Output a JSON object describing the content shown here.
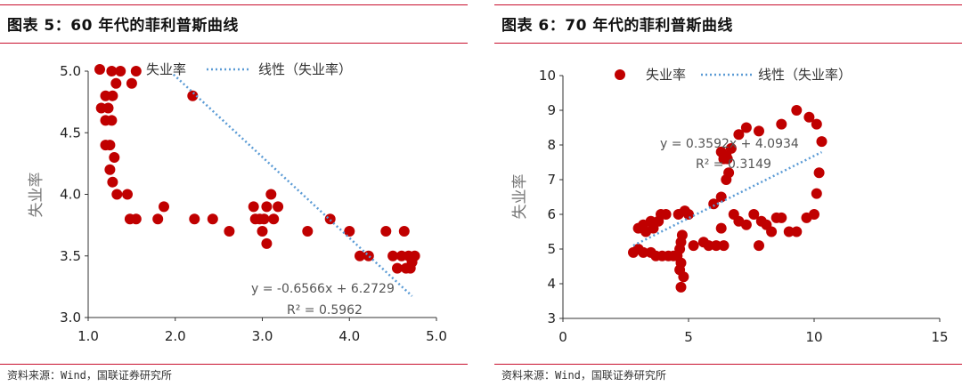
{
  "panels": [
    {
      "title": "图表 5：60 年代的菲利普斯曲线",
      "source": "资料来源：Wind，国联证券研究所"
    },
    {
      "title": "图表 6：70 年代的菲利普斯曲线",
      "source": "资料来源：Wind，国联证券研究所"
    }
  ],
  "colors": {
    "accent": "#c8102e",
    "point": "#c00000",
    "trend": "#5b9bd5"
  },
  "chart_data": [
    {
      "type": "scatter",
      "ylabel": "失业率",
      "xlim": [
        1.0,
        5.0
      ],
      "ylim": [
        3.0,
        5.0
      ],
      "xticks": [
        "1.0",
        "2.0",
        "3.0",
        "4.0",
        "5.0"
      ],
      "yticks": [
        "3.0",
        "3.5",
        "4.0",
        "4.5",
        "5.0"
      ],
      "legend": {
        "series": "失业率",
        "trend": "线性（失业率）",
        "placement": "top"
      },
      "series": [
        {
          "name": "失业率",
          "points": [
            [
              1.27,
              5.0
            ],
            [
              1.37,
              5.0
            ],
            [
              1.55,
              5.0
            ],
            [
              1.32,
              4.9
            ],
            [
              1.5,
              4.9
            ],
            [
              1.2,
              4.8
            ],
            [
              1.28,
              4.8
            ],
            [
              1.23,
              4.7
            ],
            [
              1.15,
              4.7
            ],
            [
              1.2,
              4.6
            ],
            [
              1.27,
              4.6
            ],
            [
              1.2,
              4.4
            ],
            [
              1.25,
              4.4
            ],
            [
              1.3,
              4.3
            ],
            [
              1.25,
              4.2
            ],
            [
              1.28,
              4.1
            ],
            [
              1.33,
              4.0
            ],
            [
              1.45,
              4.0
            ],
            [
              1.48,
              3.8
            ],
            [
              1.55,
              3.8
            ],
            [
              1.8,
              3.8
            ],
            [
              1.87,
              3.9
            ],
            [
              2.2,
              4.8
            ],
            [
              2.22,
              3.8
            ],
            [
              2.43,
              3.8
            ],
            [
              2.62,
              3.7
            ],
            [
              2.9,
              3.9
            ],
            [
              2.92,
              3.8
            ],
            [
              2.97,
              3.8
            ],
            [
              3.02,
              3.8
            ],
            [
              3.05,
              3.9
            ],
            [
              3.1,
              4.0
            ],
            [
              3.13,
              3.8
            ],
            [
              3.18,
              3.9
            ],
            [
              3.0,
              3.7
            ],
            [
              3.05,
              3.6
            ],
            [
              3.52,
              3.7
            ],
            [
              3.78,
              3.8
            ],
            [
              4.0,
              3.7
            ],
            [
              4.12,
              3.5
            ],
            [
              4.22,
              3.5
            ],
            [
              4.42,
              3.7
            ],
            [
              4.5,
              3.5
            ],
            [
              4.55,
              3.4
            ],
            [
              4.6,
              3.5
            ],
            [
              4.63,
              3.7
            ],
            [
              4.65,
              3.4
            ],
            [
              4.68,
              3.5
            ],
            [
              4.7,
              3.4
            ],
            [
              4.72,
              3.45
            ],
            [
              4.75,
              3.5
            ]
          ]
        }
      ],
      "trendline": {
        "slope": -0.6566,
        "intercept": 6.2729,
        "x_range": [
          1.98,
          4.72
        ],
        "equation": "y = -0.6566x + 6.2729",
        "r2": "R² = 0.5962"
      }
    },
    {
      "type": "scatter",
      "ylabel": "失业率",
      "xlim": [
        0,
        15
      ],
      "ylim": [
        3,
        10
      ],
      "xticks": [
        "0",
        "5",
        "10",
        "15"
      ],
      "yticks": [
        "3",
        "4",
        "5",
        "6",
        "7",
        "8",
        "9",
        "10"
      ],
      "legend": {
        "series": "失业率",
        "trend": "线性（失业率）",
        "placement": "top"
      },
      "series": [
        {
          "name": "失业率",
          "points": [
            [
              2.8,
              4.9
            ],
            [
              3.0,
              5.0
            ],
            [
              3.2,
              4.9
            ],
            [
              3.0,
              5.6
            ],
            [
              3.3,
              5.5
            ],
            [
              3.2,
              5.7
            ],
            [
              3.5,
              5.8
            ],
            [
              3.6,
              5.6
            ],
            [
              3.9,
              6.0
            ],
            [
              4.1,
              6.0
            ],
            [
              3.8,
              5.8
            ],
            [
              3.5,
              4.9
            ],
            [
              3.7,
              4.8
            ],
            [
              3.95,
              4.8
            ],
            [
              4.2,
              4.8
            ],
            [
              4.4,
              4.8
            ],
            [
              4.55,
              4.8
            ],
            [
              4.65,
              5.0
            ],
            [
              4.7,
              5.2
            ],
            [
              4.75,
              5.4
            ],
            [
              4.7,
              4.6
            ],
            [
              4.65,
              4.4
            ],
            [
              4.8,
              4.2
            ],
            [
              4.7,
              3.9
            ],
            [
              4.6,
              6.0
            ],
            [
              4.85,
              6.1
            ],
            [
              5.0,
              6.0
            ],
            [
              5.2,
              5.1
            ],
            [
              5.6,
              5.2
            ],
            [
              5.8,
              5.1
            ],
            [
              6.1,
              5.1
            ],
            [
              6.3,
              5.6
            ],
            [
              6.0,
              6.3
            ],
            [
              6.3,
              6.5
            ],
            [
              6.5,
              7.0
            ],
            [
              6.6,
              7.2
            ],
            [
              6.55,
              7.6
            ],
            [
              6.4,
              7.6
            ],
            [
              6.3,
              7.8
            ],
            [
              6.5,
              7.7
            ],
            [
              6.7,
              7.9
            ],
            [
              7.0,
              8.3
            ],
            [
              7.3,
              8.5
            ],
            [
              7.8,
              8.4
            ],
            [
              6.8,
              6.0
            ],
            [
              7.0,
              5.8
            ],
            [
              7.3,
              5.7
            ],
            [
              7.6,
              6.0
            ],
            [
              7.9,
              5.8
            ],
            [
              8.1,
              5.7
            ],
            [
              8.3,
              5.5
            ],
            [
              8.5,
              5.9
            ],
            [
              8.7,
              5.9
            ],
            [
              9.0,
              5.5
            ],
            [
              9.3,
              5.5
            ],
            [
              9.7,
              5.9
            ],
            [
              10.0,
              6.0
            ],
            [
              10.1,
              6.6
            ],
            [
              10.2,
              7.2
            ],
            [
              10.3,
              8.1
            ],
            [
              10.1,
              8.6
            ],
            [
              9.8,
              8.8
            ],
            [
              9.3,
              9.0
            ],
            [
              8.7,
              8.6
            ],
            [
              7.8,
              5.1
            ],
            [
              6.4,
              5.1
            ]
          ]
        }
      ],
      "trendline": {
        "slope": 0.3592,
        "intercept": 4.0934,
        "x_range": [
          2.8,
          10.3
        ],
        "equation": "y = 0.3592x + 4.0934",
        "r2": "R² = 0.3149"
      }
    }
  ]
}
